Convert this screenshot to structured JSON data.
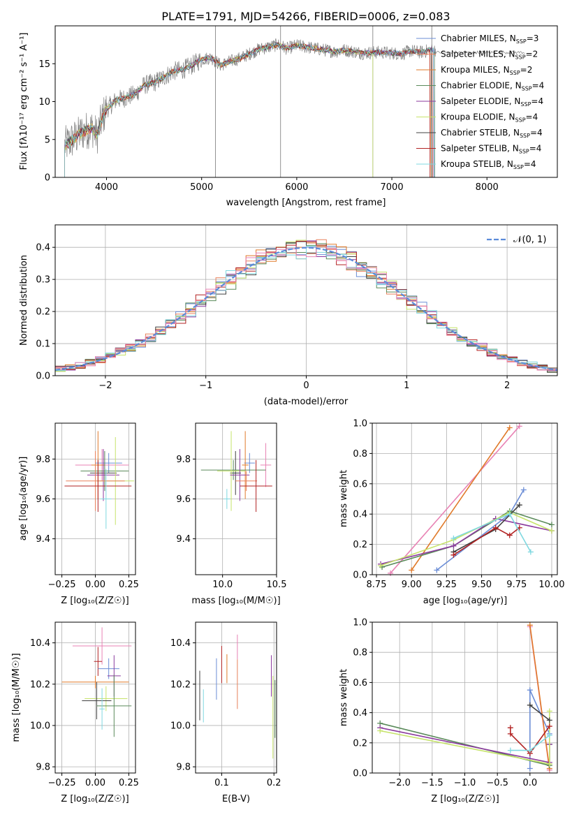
{
  "figure": {
    "title": "PLATE=1791, MJD=54266, FIBERID=0006, z=0.083"
  },
  "colors": {
    "spectrum": "#808080",
    "grid": "#b0b0b0",
    "models": [
      "#6b8dd6",
      "#e8805a",
      "#e07a2a",
      "#5a8a5a",
      "#8b3a9e",
      "#c6e36a",
      "#404040",
      "#b22222",
      "#7fd8e0",
      "#e882b4"
    ]
  },
  "chart_data": [
    {
      "id": "spectrum",
      "type": "line",
      "title": "PLATE=1791, MJD=54266, FIBERID=0006, z=0.083",
      "xlabel": "wavelength [Angstrom, rest frame]",
      "ylabel": "Flux [fλ10⁻¹⁷ erg cm⁻² s⁻¹ A⁻¹]",
      "xlim": [
        3460,
        8740
      ],
      "ylim": [
        0,
        20
      ],
      "xticks": [
        "4000",
        "5000",
        "6000",
        "7000",
        "8000"
      ],
      "yticks": [
        "0",
        "5",
        "10",
        "15"
      ],
      "grid": false,
      "legend_position": "right",
      "legend": [
        {
          "label": "Chabrier MILES, N",
          "sub": "SSP",
          "tail": "=3",
          "color": "#6b8dd6"
        },
        {
          "label": "Salpeter MILES, N",
          "sub": "SSP",
          "tail": "=2",
          "color": "#e8805a"
        },
        {
          "label": "Kroupa MILES, N",
          "sub": "SSP",
          "tail": "=2",
          "color": "#e07a2a"
        },
        {
          "label": "Chabrier ELODIE, N",
          "sub": "SSP",
          "tail": "=4",
          "color": "#5a8a5a"
        },
        {
          "label": "Salpeter ELODIE, N",
          "sub": "SSP",
          "tail": "=4",
          "color": "#8b3a9e"
        },
        {
          "label": "Kroupa ELODIE, N",
          "sub": "SSP",
          "tail": "=4",
          "color": "#c6e36a"
        },
        {
          "label": "Chabrier STELIB, N",
          "sub": "SSP",
          "tail": "=4",
          "color": "#404040"
        },
        {
          "label": "Salpeter STELIB, N",
          "sub": "SSP",
          "tail": "=4",
          "color": "#b22222"
        },
        {
          "label": "Kroupa STELIB, N",
          "sub": "SSP",
          "tail": "=4",
          "color": "#7fd8e0"
        }
      ],
      "continuum": [
        [
          3560,
          4.2
        ],
        [
          3650,
          5.0
        ],
        [
          3750,
          6.0
        ],
        [
          3850,
          6.5
        ],
        [
          3900,
          5.5
        ],
        [
          3960,
          8.0
        ],
        [
          4000,
          9.0
        ],
        [
          4100,
          10.2
        ],
        [
          4200,
          10.5
        ],
        [
          4300,
          11.0
        ],
        [
          4400,
          12.2
        ],
        [
          4500,
          12.5
        ],
        [
          4600,
          13.2
        ],
        [
          4700,
          14.0
        ],
        [
          4800,
          14.2
        ],
        [
          4900,
          14.8
        ],
        [
          5000,
          15.6
        ],
        [
          5100,
          15.8
        ],
        [
          5200,
          14.8
        ],
        [
          5300,
          15.3
        ],
        [
          5400,
          15.7
        ],
        [
          5500,
          16.3
        ],
        [
          5600,
          16.9
        ],
        [
          5700,
          17.2
        ],
        [
          5800,
          17.5
        ],
        [
          5900,
          17.0
        ],
        [
          6000,
          17.4
        ],
        [
          6100,
          17.2
        ],
        [
          6200,
          17.0
        ],
        [
          6300,
          16.8
        ],
        [
          6400,
          16.6
        ],
        [
          6500,
          16.8
        ],
        [
          6600,
          16.6
        ],
        [
          6700,
          16.4
        ],
        [
          6800,
          16.5
        ],
        [
          6900,
          16.5
        ],
        [
          7000,
          16.4
        ],
        [
          7100,
          16.3
        ],
        [
          7200,
          16.7
        ],
        [
          7300,
          16.5
        ],
        [
          7400,
          16.8
        ]
      ],
      "model_end_wavelength": [
        7450,
        7430,
        7410,
        7450,
        7440,
        6800,
        7420,
        7400,
        7445
      ],
      "sky_lines": [
        5145,
        5830,
        6800,
        7420
      ]
    },
    {
      "id": "residual_histogram",
      "type": "histogram",
      "xlabel": "(data-model)/error",
      "ylabel": "Normed distribution",
      "xlim": [
        -2.5,
        2.5
      ],
      "ylim": [
        0,
        0.47
      ],
      "xticks": [
        "−2",
        "−1",
        "0",
        "1",
        "2"
      ],
      "yticks": [
        "0.0",
        "0.1",
        "0.2",
        "0.3",
        "0.4"
      ],
      "grid": true,
      "bin_width": 0.1,
      "legend": "𝒩(0, 1)",
      "reference_curve": "normal(0,1)",
      "reference_color": "#5b8bd9"
    },
    {
      "id": "age_vs_Z",
      "type": "errorbar",
      "xlabel": "Z [log₁₀(Z/Z☉)]",
      "ylabel": "age  [log₁₀(age/yr)]",
      "xlim": [
        -0.3,
        0.3
      ],
      "ylim": [
        9.22,
        9.98
      ],
      "xticks": [
        "−0.25",
        "0.00",
        "0.25"
      ],
      "yticks": [
        "9.4",
        "9.6",
        "9.8"
      ],
      "grid": true,
      "points": [
        {
          "x": 0.1,
          "xerr": 0.1,
          "y": 9.78,
          "yerr": 0.05,
          "color": "#6b8dd6"
        },
        {
          "x": 0.05,
          "xerr": 0.2,
          "y": 9.77,
          "yerr": 0.08,
          "color": "#e882b4"
        },
        {
          "x": 0.02,
          "xerr": 0.05,
          "y": 9.77,
          "yerr": 0.17,
          "color": "#e07a2a"
        },
        {
          "x": 0.06,
          "xerr": 0.1,
          "y": 9.73,
          "yerr": 0.11,
          "color": "#404040"
        },
        {
          "x": 0.07,
          "xerr": 0.18,
          "y": 9.74,
          "yerr": 0.1,
          "color": "#5a8a5a"
        },
        {
          "x": 0.06,
          "xerr": 0.12,
          "y": 9.72,
          "yerr": 0.13,
          "color": "#8b3a9e"
        },
        {
          "x": 0.15,
          "xerr": 0.14,
          "y": 9.69,
          "yerr": 0.22,
          "color": "#c6e36a"
        },
        {
          "x": 0.0,
          "xerr": 0.22,
          "y": 9.69,
          "yerr": 0.15,
          "color": "#e8805a"
        },
        {
          "x": 0.02,
          "xerr": 0.25,
          "y": 9.665,
          "yerr": 0.13,
          "color": "#b22222"
        },
        {
          "x": 0.08,
          "xerr": 0.04,
          "y": 9.6,
          "yerr": 0.15,
          "color": "#7fd8e0"
        }
      ]
    },
    {
      "id": "age_vs_mass",
      "type": "errorbar",
      "xlabel": "mass [log₁₀(M/M☉)]",
      "xlim": [
        9.75,
        10.5
      ],
      "ylim": [
        9.22,
        9.98
      ],
      "xticks": [
        "10.0",
        "10.5"
      ],
      "yticks": [
        "9.4",
        "9.6",
        "9.8"
      ],
      "grid": true,
      "points": [
        {
          "x": 10.25,
          "xerr": 0.05,
          "y": 9.78,
          "yerr": 0.05,
          "color": "#6b8dd6"
        },
        {
          "x": 10.4,
          "xerr": 0.05,
          "y": 9.77,
          "yerr": 0.11,
          "color": "#e882b4"
        },
        {
          "x": 10.21,
          "xerr": 0.03,
          "y": 9.77,
          "yerr": 0.17,
          "color": "#e07a2a"
        },
        {
          "x": 10.12,
          "xerr": 0.05,
          "y": 9.73,
          "yerr": 0.11,
          "color": "#404040"
        },
        {
          "x": 10.1,
          "xerr": 0.3,
          "y": 9.745,
          "yerr": 0.05,
          "color": "#5a8a5a"
        },
        {
          "x": 10.08,
          "xerr": 0.13,
          "y": 9.74,
          "yerr": 0.2,
          "color": "#c6e36a"
        },
        {
          "x": 10.16,
          "xerr": 0.09,
          "y": 9.72,
          "yerr": 0.13,
          "color": "#8b3a9e"
        },
        {
          "x": 10.22,
          "xerr": 0.1,
          "y": 9.69,
          "yerr": 0.05,
          "color": "#e8805a"
        },
        {
          "x": 10.31,
          "xerr": 0.15,
          "y": 9.665,
          "yerr": 0.13,
          "color": "#b22222"
        },
        {
          "x": 10.04,
          "xerr": 0.03,
          "y": 9.6,
          "yerr": 0.05,
          "color": "#7fd8e0"
        }
      ]
    },
    {
      "id": "weight_vs_age",
      "type": "line",
      "xlabel": "age  [log₁₀(age/yr)]",
      "ylabel": "mass weight",
      "xlim": [
        8.72,
        10.04
      ],
      "ylim": [
        0,
        1
      ],
      "xticks": [
        "8.75",
        "9.00",
        "9.25",
        "9.50",
        "9.75",
        "10.00"
      ],
      "yticks": [
        "0.0",
        "0.2",
        "0.4",
        "0.6",
        "0.8",
        "1.0"
      ],
      "grid": true,
      "series": [
        {
          "color": "#6b8dd6",
          "x": [
            9.18,
            9.7,
            9.8
          ],
          "y": [
            0.03,
            0.4,
            0.56
          ]
        },
        {
          "color": "#e882b4",
          "x": [
            8.85,
            9.77
          ],
          "y": [
            0.01,
            0.98
          ]
        },
        {
          "color": "#e07a2a",
          "x": [
            9.0,
            9.7
          ],
          "y": [
            0.03,
            0.97
          ]
        },
        {
          "color": "#5a8a5a",
          "x": [
            8.79,
            9.3,
            9.7,
            10.0
          ],
          "y": [
            0.05,
            0.19,
            0.42,
            0.33
          ]
        },
        {
          "color": "#8b3a9e",
          "x": [
            8.78,
            9.3,
            9.6,
            10.0
          ],
          "y": [
            0.07,
            0.19,
            0.37,
            0.29
          ]
        },
        {
          "color": "#c6e36a",
          "x": [
            8.78,
            9.3,
            9.7,
            10.0
          ],
          "y": [
            0.06,
            0.23,
            0.41,
            0.29
          ]
        },
        {
          "color": "#404040",
          "x": [
            9.3,
            9.6,
            9.77
          ],
          "y": [
            0.15,
            0.3,
            0.46
          ]
        },
        {
          "color": "#b22222",
          "x": [
            9.3,
            9.6,
            9.7,
            9.77
          ],
          "y": [
            0.13,
            0.31,
            0.26,
            0.31
          ]
        },
        {
          "color": "#7fd8e0",
          "x": [
            9.3,
            9.7,
            9.85
          ],
          "y": [
            0.24,
            0.4,
            0.15
          ]
        }
      ]
    },
    {
      "id": "mass_vs_Z",
      "type": "errorbar",
      "xlabel": "Z [log₁₀(Z/Z☉)]",
      "ylabel": "mass [log₁₀(M/M☉)]",
      "xlim": [
        -0.3,
        0.3
      ],
      "ylim": [
        9.77,
        10.5
      ],
      "xticks": [
        "−0.25",
        "0.00",
        "0.25"
      ],
      "yticks": [
        "9.8",
        "10.0",
        "10.2",
        "10.4"
      ],
      "grid": true,
      "points": [
        {
          "x": 0.05,
          "xerr": 0.22,
          "y": 10.385,
          "yerr": 0.09,
          "color": "#e882b4"
        },
        {
          "x": 0.02,
          "xerr": 0.03,
          "y": 10.31,
          "yerr": 0.07,
          "color": "#b22222"
        },
        {
          "x": 0.1,
          "xerr": 0.08,
          "y": 10.275,
          "yerr": 0.05,
          "color": "#6b8dd6"
        },
        {
          "x": 0.14,
          "xerr": 0.05,
          "y": 10.24,
          "yerr": 0.1,
          "color": "#8b3a9e"
        },
        {
          "x": 0.0,
          "xerr": 0.25,
          "y": 10.21,
          "yerr": 0.03,
          "color": "#e07a2a"
        },
        {
          "x": 0.08,
          "xerr": 0.16,
          "y": 10.13,
          "yerr": 0.06,
          "color": "#c6e36a"
        },
        {
          "x": 0.01,
          "xerr": 0.11,
          "y": 10.12,
          "yerr": 0.09,
          "color": "#404040"
        },
        {
          "x": 0.14,
          "xerr": 0.13,
          "y": 10.095,
          "yerr": 0.15,
          "color": "#5a8a5a"
        },
        {
          "x": 0.05,
          "xerr": 0.02,
          "y": 10.08,
          "yerr": 0.1,
          "color": "#7fd8e0"
        }
      ]
    },
    {
      "id": "mass_vs_ebv",
      "type": "errorbar",
      "xlabel": "E(B-V)",
      "xlim": [
        0.05,
        0.205
      ],
      "ylim": [
        9.77,
        10.5
      ],
      "xticks": [
        "0.1",
        "0.2"
      ],
      "yticks": [
        "9.8",
        "10.0",
        "10.2",
        "10.4"
      ],
      "grid": true,
      "points": [
        {
          "x": 0.058,
          "y": 10.145,
          "yerr": 0.12,
          "color": "#404040"
        },
        {
          "x": 0.065,
          "y": 10.095,
          "yerr": 0.08,
          "color": "#7fd8e0"
        },
        {
          "x": 0.09,
          "y": 10.225,
          "yerr": 0.1,
          "color": "#6b8dd6"
        },
        {
          "x": 0.1,
          "y": 10.295,
          "yerr": 0.09,
          "color": "#b22222"
        },
        {
          "x": 0.11,
          "y": 10.275,
          "yerr": 0.07,
          "color": "#e07a2a"
        },
        {
          "x": 0.13,
          "y": 10.38,
          "yerr": 0.06,
          "color": "#e882b4"
        },
        {
          "x": 0.13,
          "y": 10.2,
          "yerr": 0.12,
          "color": "#e8805a"
        },
        {
          "x": 0.195,
          "y": 10.24,
          "yerr": 0.1,
          "color": "#8b3a9e"
        },
        {
          "x": 0.198,
          "y": 10.04,
          "yerr": 0.2,
          "color": "#c6e36a"
        },
        {
          "x": 0.202,
          "y": 10.08,
          "yerr": 0.14,
          "color": "#5a8a5a"
        }
      ]
    },
    {
      "id": "weight_vs_Z",
      "type": "line",
      "xlabel": "Z [log₁₀(Z/Z☉)]",
      "ylabel": "mass weight",
      "xlim": [
        -2.42,
        0.42
      ],
      "ylim": [
        0,
        1
      ],
      "xticks": [
        "−2.0",
        "−1.5",
        "−1.0",
        "−0.5",
        "0.0"
      ],
      "yticks": [
        "0.0",
        "0.2",
        "0.4",
        "0.6",
        "0.8",
        "1.0"
      ],
      "grid": true,
      "series": [
        {
          "color": "#6b8dd6",
          "x": [
            0.0,
            0.0,
            0.3
          ],
          "y": [
            0.03,
            0.55,
            0.26
          ]
        },
        {
          "color": "#e882b4",
          "x": [
            0.0,
            0.3
          ],
          "y": [
            0.97,
            0.02
          ]
        },
        {
          "color": "#e07a2a",
          "x": [
            0.0,
            0.3
          ],
          "y": [
            0.98,
            0.03
          ]
        },
        {
          "color": "#5a8a5a",
          "x": [
            -2.3,
            0.3,
            0.3
          ],
          "y": [
            0.33,
            0.05,
            0.19
          ]
        },
        {
          "color": "#8b3a9e",
          "x": [
            -2.3,
            0.3,
            0.3
          ],
          "y": [
            0.3,
            0.07,
            0.19
          ]
        },
        {
          "color": "#c6e36a",
          "x": [
            -2.3,
            0.3,
            0.3
          ],
          "y": [
            0.28,
            0.06,
            0.41
          ]
        },
        {
          "color": "#404040",
          "x": [
            0.0,
            0.3
          ],
          "y": [
            0.45,
            0.35
          ]
        },
        {
          "color": "#b22222",
          "x": [
            -0.3,
            -0.3,
            0.0,
            0.3
          ],
          "y": [
            0.3,
            0.26,
            0.13,
            0.31
          ]
        },
        {
          "color": "#7fd8e0",
          "x": [
            -0.3,
            0.0,
            0.3
          ],
          "y": [
            0.15,
            0.15,
            0.25
          ]
        }
      ]
    }
  ]
}
